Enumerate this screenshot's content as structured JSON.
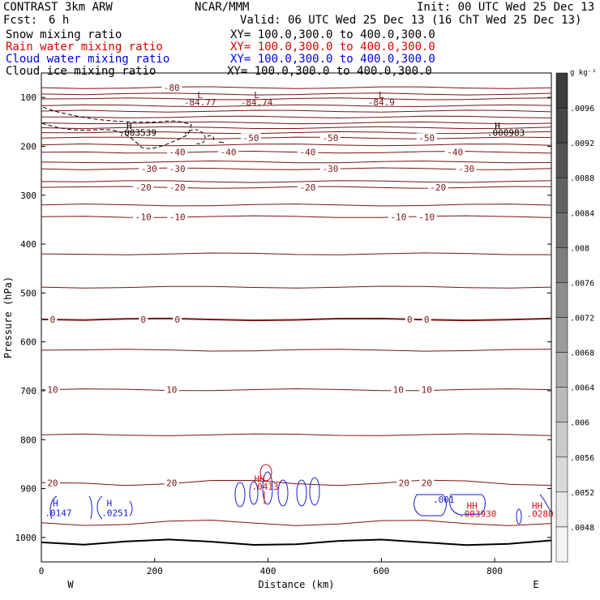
{
  "header": {
    "model": "CONTRAST   3km ARW",
    "org": "NCAR/MMM",
    "init": "Init: 00 UTC Wed 25 Dec 13",
    "fcst_label": "Fcst:",
    "fcst_value": "6 h",
    "valid": "Valid: 06 UTC Wed 25 Dec 13 (16 ChT Wed 25 Dec 13)"
  },
  "fields": [
    {
      "name": "Snow mixing ratio",
      "xy": "XY= 100.0,300.0 to 400.0,300.0",
      "color": "#000000"
    },
    {
      "name": "Rain water mixing ratio",
      "xy": "XY= 100.0,300.0 to 400.0,300.0",
      "color": "#dd0000"
    },
    {
      "name": "Cloud water mixing ratio",
      "xy": "XY= 100.0,300.0 to 400.0,300.0",
      "color": "#0000dd"
    },
    {
      "name": "Cloud ice mixing ratio",
      "xy": "XY= 100.0,300.0 to 400.0,300.0",
      "color": "#000000"
    }
  ],
  "colors": {
    "temperature": "#7a1414",
    "cloud_water": "#1a1adc",
    "rain": "#cc1010",
    "ice": "#000000"
  },
  "chart_data": {
    "type": "cross-section contour",
    "xlabel": "Distance (km)",
    "ylabel": "Pressure (hPa)",
    "xlim": [
      0,
      900
    ],
    "ylim": [
      1050,
      50
    ],
    "x_ticks": [
      "0",
      "200",
      "400",
      "600",
      "800"
    ],
    "y_ticks": [
      "100",
      "200",
      "300",
      "400",
      "500",
      "600",
      "700",
      "800",
      "900",
      "1000"
    ],
    "west_label": "W",
    "east_label": "E",
    "colorbar": {
      "units": "g kg⁻¹",
      "levels": [
        ".0096",
        ".0092",
        ".0088",
        ".0084",
        ".008",
        ".0076",
        ".0072",
        ".0068",
        ".0064",
        ".006",
        ".0056",
        ".0052",
        ".0048"
      ],
      "shades": [
        "#3c3c3c",
        "#474747",
        "#545454",
        "#626262",
        "#707070",
        "#7e7e7e",
        "#8d8d8d",
        "#9c9c9c",
        "#ababab",
        "#bababa",
        "#cacaca",
        "#d9d9d9",
        "#e8e8e8",
        "#f4f4f4"
      ]
    },
    "isotherms": [
      {
        "p": 80,
        "labels": [
          {
            "x": 230,
            "t": "-80"
          }
        ]
      },
      {
        "p": 93
      },
      {
        "p": 103
      },
      {
        "p": 117
      },
      {
        "p": 128
      },
      {
        "p": 140
      },
      {
        "p": 152
      },
      {
        "p": 162
      },
      {
        "p": 172
      },
      {
        "p": 183,
        "labels": [
          {
            "x": 370,
            "t": "-50"
          },
          {
            "x": 510,
            "t": "-50"
          },
          {
            "x": 680,
            "t": "-50"
          }
        ]
      },
      {
        "p": 197
      },
      {
        "p": 212,
        "labels": [
          {
            "x": 240,
            "t": "-40"
          },
          {
            "x": 330,
            "t": "-40"
          },
          {
            "x": 470,
            "t": "-40"
          },
          {
            "x": 730,
            "t": "-40"
          }
        ]
      },
      {
        "p": 232
      },
      {
        "p": 246,
        "labels": [
          {
            "x": 190,
            "t": "-30"
          },
          {
            "x": 240,
            "t": "-30"
          },
          {
            "x": 510,
            "t": "-30"
          },
          {
            "x": 750,
            "t": "-30"
          }
        ]
      },
      {
        "p": 272
      },
      {
        "p": 284,
        "labels": [
          {
            "x": 180,
            "t": "-20"
          },
          {
            "x": 240,
            "t": "-20"
          },
          {
            "x": 470,
            "t": "-20"
          },
          {
            "x": 700,
            "t": "-20"
          }
        ]
      },
      {
        "p": 320
      },
      {
        "p": 344,
        "labels": [
          {
            "x": 180,
            "t": "-10"
          },
          {
            "x": 240,
            "t": "-10"
          },
          {
            "x": 630,
            "t": "-10"
          },
          {
            "x": 680,
            "t": "-10"
          }
        ]
      },
      {
        "p": 420
      },
      {
        "p": 488
      },
      {
        "p": 554,
        "bold": true,
        "labels": [
          {
            "x": 20,
            "t": "0"
          },
          {
            "x": 180,
            "t": "0"
          },
          {
            "x": 240,
            "t": "0"
          },
          {
            "x": 650,
            "t": "0"
          },
          {
            "x": 680,
            "t": "0"
          }
        ]
      },
      {
        "p": 617
      },
      {
        "p": 698,
        "labels": [
          {
            "x": 20,
            "t": "10"
          },
          {
            "x": 230,
            "t": "10"
          },
          {
            "x": 630,
            "t": "10"
          },
          {
            "x": 680,
            "t": "10"
          }
        ]
      },
      {
        "p": 790
      },
      {
        "p": 888,
        "labels": [
          {
            "x": 20,
            "t": "20"
          },
          {
            "x": 230,
            "t": "20"
          },
          {
            "x": 640,
            "t": "20"
          },
          {
            "x": 680,
            "t": "20"
          }
        ]
      },
      {
        "p": 970
      },
      {
        "p": 1010,
        "bold": true,
        "black": true
      }
    ],
    "markers": [
      {
        "x": 280,
        "p": 95,
        "t": "L",
        "color": "temperature"
      },
      {
        "x": 280,
        "p": 110,
        "t": "-84.77",
        "color": "temperature"
      },
      {
        "x": 380,
        "p": 95,
        "t": "L",
        "color": "temperature"
      },
      {
        "x": 380,
        "p": 110,
        "t": "-84.74",
        "color": "temperature"
      },
      {
        "x": 600,
        "p": 95,
        "t": "L",
        "color": "temperature"
      },
      {
        "x": 600,
        "p": 110,
        "t": "-84.9",
        "color": "temperature"
      },
      {
        "x": 155,
        "p": 158,
        "t": "H",
        "color": "ice"
      },
      {
        "x": 170,
        "p": 172,
        "t": ".003539",
        "color": "ice"
      },
      {
        "x": 805,
        "p": 158,
        "t": "H",
        "color": "ice"
      },
      {
        "x": 820,
        "p": 172,
        "t": ".000983",
        "color": "ice"
      },
      {
        "x": 25,
        "p": 930,
        "t": "H",
        "color": "cloud_water"
      },
      {
        "x": 30,
        "p": 950,
        "t": ".0147",
        "color": "cloud_water"
      },
      {
        "x": 120,
        "p": 930,
        "t": "H",
        "color": "cloud_water"
      },
      {
        "x": 130,
        "p": 950,
        "t": ".0251",
        "color": "cloud_water"
      },
      {
        "x": 385,
        "p": 880,
        "t": "HH",
        "color": "rain"
      },
      {
        "x": 395,
        "p": 896,
        "t": ".0413",
        "color": "rain"
      },
      {
        "x": 710,
        "p": 922,
        "t": ".001",
        "color": "cloud_water"
      },
      {
        "x": 760,
        "p": 935,
        "t": "HH",
        "color": "rain"
      },
      {
        "x": 770,
        "p": 951,
        "t": ".003930",
        "color": "rain"
      },
      {
        "x": 875,
        "p": 935,
        "t": "HH",
        "color": "rain"
      },
      {
        "x": 880,
        "p": 951,
        "t": ".0280",
        "color": "rain"
      }
    ]
  }
}
